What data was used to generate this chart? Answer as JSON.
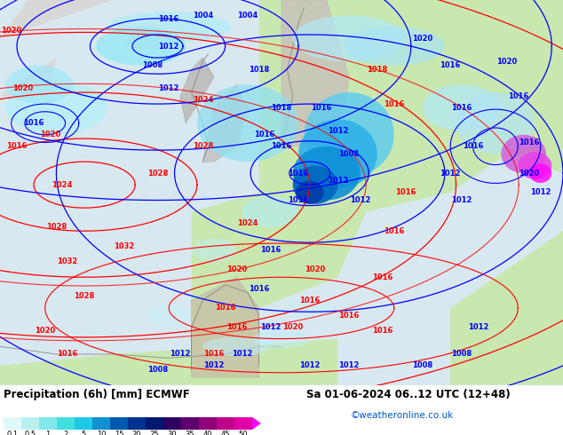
{
  "title_left": "Precipitation (6h) [mm] ECMWF",
  "title_right": "Sa 01-06-2024 06..12 UTC (12+48)",
  "credit": "©weatheronline.co.uk",
  "fig_width": 6.34,
  "fig_height": 4.9,
  "dpi": 100,
  "map_facecolor": "#d8ecd8",
  "bottom_bg": "#ffffff",
  "cbar_colors": [
    "#e0f8f8",
    "#b8f0f0",
    "#80e8e8",
    "#40e0e0",
    "#20c8e8",
    "#1090d0",
    "#0058b0",
    "#003090",
    "#001870",
    "#300060",
    "#600070",
    "#900078",
    "#c00088",
    "#e000a8",
    "#ff00ff"
  ],
  "cbar_labels": [
    "0.1",
    "0.5",
    "1",
    "2",
    "5",
    "10",
    "15",
    "20",
    "25",
    "30",
    "35",
    "40",
    "45",
    "50"
  ],
  "ocean_color": "#c0e8f8",
  "land_color": "#c8e8b0",
  "grey_land": "#d8d8d8",
  "precip_colors": {
    "very_light": "#c8f0f0",
    "light": "#90e0e8",
    "medium": "#50c8e0",
    "strong": "#1080c0",
    "very_strong": "#0040a0",
    "purple1": "#8000a0",
    "purple2": "#d000c0",
    "magenta": "#ff00ff"
  }
}
